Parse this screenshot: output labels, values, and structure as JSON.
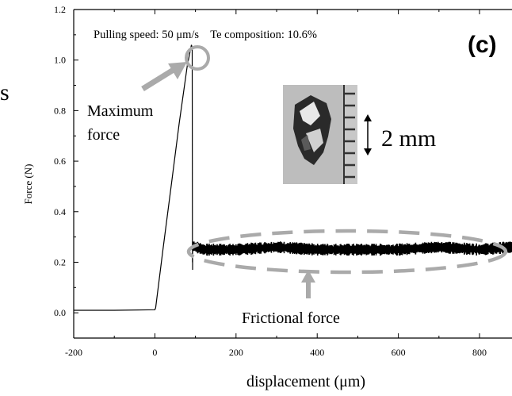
{
  "chart_data": {
    "type": "line",
    "panel_label": "(c)",
    "annotation_top": "Pulling speed: 50 μm/s    Te composition: 10.6%",
    "partial_text_left": "s",
    "xlabel": "displacement (μm)",
    "ylabel": "Force (N)",
    "xlim": [
      -200,
      880
    ],
    "ylim": [
      -0.1,
      1.2
    ],
    "x_ticks": [
      -200,
      0,
      200,
      400,
      600,
      800
    ],
    "y_ticks": [
      0.0,
      0.2,
      0.4,
      0.6,
      0.8,
      1.0,
      1.2
    ],
    "x_tick_labels": [
      "-200",
      "0",
      "200",
      "400",
      "600",
      "800"
    ],
    "y_tick_labels": [
      "0.0",
      "0.2",
      "0.4",
      "0.6",
      "0.8",
      "1.0",
      "1.2"
    ],
    "series": [
      {
        "color": "#000000",
        "x": [
          -200,
          -100,
          0,
          2,
          20,
          40,
          60,
          80,
          90,
          92,
          92.5,
          93,
          120,
          200,
          300,
          400,
          500,
          600,
          700,
          800,
          880
        ],
        "y": [
          0.01,
          0.01,
          0.012,
          0.02,
          0.25,
          0.5,
          0.75,
          0.98,
          1.06,
          1.05,
          0.2,
          0.265,
          0.25,
          0.25,
          0.26,
          0.25,
          0.25,
          0.25,
          0.26,
          0.25,
          0.26
        ]
      }
    ],
    "annotations": {
      "max_force_label_line1": "Maximum",
      "max_force_label_line2": "force",
      "frictional_force_label": "Frictional force",
      "scale_bar_label": "2 mm"
    },
    "marker_color": "#aaaaaa"
  }
}
